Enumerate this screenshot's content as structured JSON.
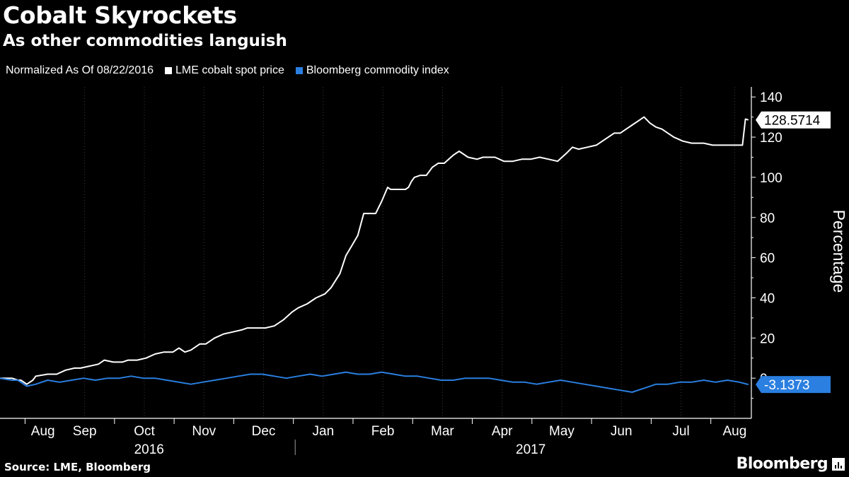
{
  "header": {
    "title": "Cobalt Skyrockets",
    "subtitle": "As other commodities languish"
  },
  "legend": {
    "note": "Normalized As Of 08/22/2016",
    "items": [
      {
        "label": "LME cobalt spot price",
        "color": "#ffffff"
      },
      {
        "label": "Bloomberg commodity index",
        "color": "#2a7fe0"
      }
    ]
  },
  "footer": {
    "source": "Source: LME, Bloomberg",
    "brand": "Bloomberg"
  },
  "chart_data": {
    "type": "line",
    "ylabel": "Percentage",
    "ylim": [
      -20,
      145
    ],
    "yticks": [
      0,
      20,
      40,
      60,
      80,
      100,
      120,
      140
    ],
    "xlim": [
      0,
      12.6
    ],
    "months": [
      {
        "label": "Aug",
        "pos": 0.72
      },
      {
        "label": "Sep",
        "pos": 1.42
      },
      {
        "label": "Oct",
        "pos": 2.42
      },
      {
        "label": "Nov",
        "pos": 3.42
      },
      {
        "label": "Dec",
        "pos": 4.42
      },
      {
        "label": "Jan",
        "pos": 5.42
      },
      {
        "label": "Feb",
        "pos": 6.42
      },
      {
        "label": "Mar",
        "pos": 7.42
      },
      {
        "label": "Apr",
        "pos": 8.42
      },
      {
        "label": "May",
        "pos": 9.42
      },
      {
        "label": "Jun",
        "pos": 10.42
      },
      {
        "label": "Jul",
        "pos": 11.42
      },
      {
        "label": "Aug",
        "pos": 12.32
      }
    ],
    "years": [
      {
        "label": "2016",
        "pos": 2.5
      },
      {
        "label": "2017",
        "pos": 8.9
      }
    ],
    "year_divider": 4.95,
    "series": [
      {
        "name": "LME cobalt spot price",
        "color": "#ffffff",
        "last_label": "128.5714",
        "x": [
          0,
          0.2,
          0.3,
          0.35,
          0.45,
          0.55,
          0.6,
          0.8,
          0.95,
          1.1,
          1.25,
          1.35,
          1.5,
          1.65,
          1.75,
          1.9,
          2.05,
          2.15,
          2.3,
          2.45,
          2.6,
          2.75,
          2.9,
          3.0,
          3.1,
          3.2,
          3.35,
          3.45,
          3.6,
          3.75,
          3.9,
          4.05,
          4.15,
          4.3,
          4.45,
          4.6,
          4.75,
          4.9,
          5.0,
          5.15,
          5.3,
          5.45,
          5.55,
          5.7,
          5.8,
          5.9,
          6.0,
          6.1,
          6.15,
          6.25,
          6.3,
          6.4,
          6.5,
          6.55,
          6.65,
          6.8,
          6.85,
          6.9,
          6.95,
          7.05,
          7.15,
          7.25,
          7.35,
          7.45,
          7.6,
          7.7,
          7.85,
          8.0,
          8.1,
          8.2,
          8.3,
          8.45,
          8.6,
          8.75,
          8.9,
          9.05,
          9.2,
          9.35,
          9.5,
          9.6,
          9.7,
          9.85,
          10.0,
          10.15,
          10.3,
          10.4,
          10.5,
          10.6,
          10.7,
          10.8,
          10.9,
          11.0,
          11.1,
          11.2,
          11.3,
          11.45,
          11.6,
          11.8,
          11.95,
          12.0,
          12.1,
          12.2,
          12.3,
          12.45,
          12.5,
          12.55
        ],
        "values": [
          0,
          0,
          -1,
          -1,
          -3,
          -1,
          1,
          2,
          2,
          4,
          5,
          5,
          6,
          7,
          9,
          8,
          8,
          9,
          9,
          10,
          12,
          13,
          13,
          15,
          13,
          14,
          17,
          17,
          20,
          22,
          23,
          24,
          25,
          25,
          25,
          26,
          29,
          33,
          35,
          37,
          40,
          42,
          45,
          52,
          61,
          66,
          71,
          82,
          82,
          82,
          82,
          88,
          95,
          94,
          94,
          94,
          95,
          98,
          100,
          101,
          101,
          105,
          107,
          107,
          111,
          113,
          110,
          109,
          110,
          110,
          110,
          108,
          108,
          109,
          109,
          110,
          109,
          108,
          112,
          115,
          114,
          115,
          116,
          119,
          122,
          122,
          124,
          126,
          128,
          130,
          127,
          125,
          124,
          122,
          120,
          118,
          117,
          117,
          116,
          116,
          116,
          116,
          116,
          116,
          129,
          128.5714
        ]
      },
      {
        "name": "Bloomberg commodity index",
        "color": "#2a7fe0",
        "last_label": "-3.1373",
        "x": [
          0,
          0.2,
          0.3,
          0.45,
          0.6,
          0.8,
          1.0,
          1.2,
          1.4,
          1.6,
          1.8,
          2.0,
          2.2,
          2.4,
          2.6,
          2.8,
          3.0,
          3.2,
          3.4,
          3.6,
          3.8,
          4.0,
          4.2,
          4.4,
          4.6,
          4.8,
          5.0,
          5.2,
          5.4,
          5.6,
          5.8,
          6.0,
          6.2,
          6.4,
          6.6,
          6.8,
          7.0,
          7.2,
          7.4,
          7.6,
          7.8,
          8.0,
          8.2,
          8.4,
          8.6,
          8.8,
          9.0,
          9.2,
          9.4,
          9.6,
          9.8,
          10.0,
          10.2,
          10.4,
          10.6,
          10.8,
          11.0,
          11.2,
          11.4,
          11.6,
          11.8,
          12.0,
          12.2,
          12.4,
          12.55
        ],
        "values": [
          0,
          -1,
          -1,
          -4,
          -3,
          -1,
          -2,
          -1,
          0,
          -1,
          0,
          0,
          1,
          0,
          0,
          -1,
          -2,
          -3,
          -2,
          -1,
          0,
          1,
          2,
          2,
          1,
          0,
          1,
          2,
          1,
          2,
          3,
          2,
          2,
          3,
          2,
          1,
          1,
          0,
          -1,
          -1,
          0,
          0,
          0,
          -1,
          -2,
          -2,
          -3,
          -2,
          -1,
          -2,
          -3,
          -4,
          -5,
          -6,
          -7,
          -5,
          -3,
          -3,
          -2,
          -2,
          -1,
          -2,
          -1,
          -2,
          -3.1373
        ]
      }
    ]
  }
}
